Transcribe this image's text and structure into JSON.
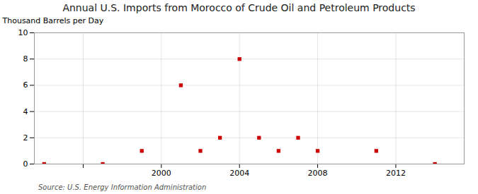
{
  "chart_data": {
    "type": "scatter",
    "title": "Annual U.S. Imports from Morocco of Crude Oil and Petroleum Products",
    "ylabel": "Thousand Barrels per Day",
    "source": "Source: U.S. Energy Information Administration",
    "x": [
      1994,
      1997,
      1999,
      2001,
      2002,
      2003,
      2004,
      2005,
      2006,
      2007,
      2008,
      2011,
      2014
    ],
    "values": [
      0,
      0,
      1,
      6,
      1,
      2,
      8,
      2,
      1,
      2,
      1,
      1,
      0
    ],
    "color": "#cc0000",
    "marker": "square",
    "xlim": [
      1993.5,
      2015.5
    ],
    "xticks": [
      {
        "value": 1996,
        "label": null
      },
      2000,
      2004,
      2008,
      2012
    ],
    "ylim": [
      0,
      10
    ],
    "yticks": [
      0,
      2,
      4,
      6,
      8,
      10
    ],
    "grid": true
  }
}
